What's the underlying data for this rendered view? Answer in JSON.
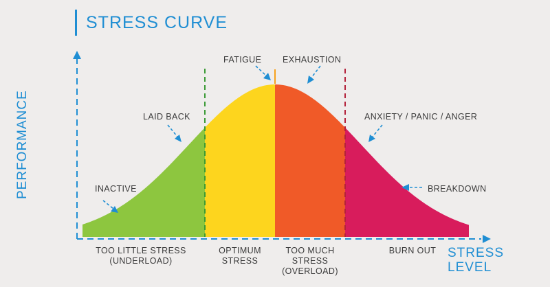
{
  "title": "STRESS CURVE",
  "axes": {
    "y_label": "PERFORMANCE",
    "x_label_line1": "STRESS",
    "x_label_line2": "LEVEL"
  },
  "curve_labels": {
    "inactive": "INACTIVE",
    "laid_back": "LAID BACK",
    "fatigue": "FATIGUE",
    "exhaustion": "EXHAUSTION",
    "anxiety": "ANXIETY / PANIC / ANGER",
    "breakdown": "BREAKDOWN"
  },
  "zones": [
    {
      "line1": "TOO LITTLE STRESS",
      "line2": "(UNDERLOAD)",
      "line3": "",
      "color": "#8dc63f"
    },
    {
      "line1": "OPTIMUM",
      "line2": "STRESS",
      "line3": "",
      "color": "#fdd51e"
    },
    {
      "line1": "TOO MUCH",
      "line2": "STRESS",
      "line3": "(OVERLOAD)",
      "color": "#f05a28"
    },
    {
      "line1": "BURN OUT",
      "line2": "",
      "line3": "",
      "color": "#d81c5c"
    }
  ],
  "colors": {
    "accent": "#1f8ed3",
    "green_divider": "#3a9a35",
    "orange_divider": "#f7a11a",
    "red_divider": "#b3223b",
    "background": "#efedec"
  }
}
